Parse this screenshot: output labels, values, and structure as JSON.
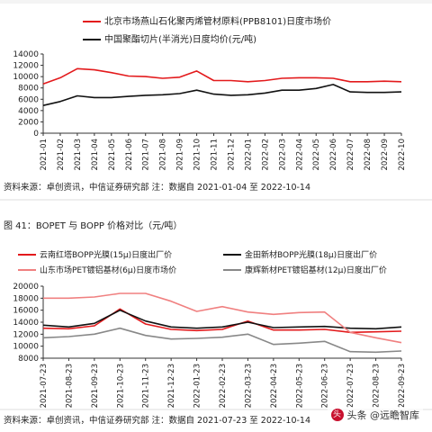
{
  "source_note_1": "资料来源：卓创资讯，中信证券研究部  注：数据自 2021-01-04 至 2022-10-14",
  "figure_caption_2": "图 41：BOPET 与 BOPP 价格对比（元/吨）",
  "source_note_2": "资料来源：卓创资讯，中信证券研究部  注：数据自 2021-07-23 至 2022-10-14",
  "watermark": {
    "text": "头条 @远瞻智库",
    "icon": "toutiao-logo-icon"
  },
  "chart_data": [
    {
      "type": "line",
      "grid": false,
      "legend_position": "top",
      "ylim": [
        0,
        14000
      ],
      "yticks": [
        0,
        2000,
        4000,
        6000,
        8000,
        10000,
        12000,
        14000
      ],
      "x": [
        "2021-01",
        "2021-02",
        "2021-03",
        "2021-04",
        "2021-05",
        "2021-06",
        "2021-07",
        "2021-08",
        "2021-09",
        "2021-10",
        "2021-11",
        "2021-12",
        "2022-01",
        "2022-02",
        "2022-03",
        "2022-04",
        "2022-05",
        "2022-06",
        "2022-07",
        "2022-08",
        "2022-09",
        "2022-10"
      ],
      "series": [
        {
          "name": "北京市场燕山石化聚丙烯管材原料(PPB8101)日度市场价",
          "color": "#e31a1c",
          "values": [
            8700,
            9800,
            11400,
            11200,
            10700,
            10100,
            10000,
            9700,
            9900,
            11000,
            9300,
            9300,
            9100,
            9300,
            9700,
            9800,
            9800,
            9700,
            9100,
            9100,
            9200,
            9100
          ]
        },
        {
          "name": "中国聚酯切片(半消光)日度均价(元/吨)",
          "color": "#111111",
          "values": [
            4900,
            5600,
            6600,
            6300,
            6300,
            6500,
            6700,
            6800,
            7000,
            7600,
            6900,
            6700,
            6800,
            7100,
            7600,
            7600,
            7900,
            8600,
            7300,
            7200,
            7200,
            7300
          ]
        }
      ]
    },
    {
      "type": "line",
      "grid": false,
      "legend_position": "top",
      "ylim": [
        8000,
        20000
      ],
      "yticks": [
        8000,
        10000,
        12000,
        14000,
        16000,
        18000,
        20000
      ],
      "x": [
        "2021-07-23",
        "2021-08-23",
        "2021-09-23",
        "2021-10-23",
        "2021-11-23",
        "2021-12-23",
        "2022-01-23",
        "2022-02-23",
        "2022-03-23",
        "2022-04-23",
        "2022-05-23",
        "2022-06-23",
        "2022-07-23",
        "2022-08-23",
        "2022-09-23"
      ],
      "series": [
        {
          "name": "云南红塔BOPP光膜(15μ)日度出厂价",
          "color": "#e31a1c",
          "values": [
            13000,
            12900,
            13400,
            16200,
            13700,
            12800,
            12600,
            12800,
            14200,
            12700,
            12700,
            12800,
            12300,
            12400,
            12500
          ]
        },
        {
          "name": "金田新材BOPP光膜(18μ)日度出厂价",
          "color": "#111111",
          "values": [
            13500,
            13200,
            13800,
            16000,
            14200,
            13200,
            13000,
            13200,
            14000,
            13100,
            13200,
            13300,
            13000,
            12900,
            13200
          ]
        },
        {
          "name": "山东市场PET镀铝基材(6μ)日度市场价",
          "color": "#f08080",
          "values": [
            18000,
            18000,
            18200,
            18800,
            18800,
            17500,
            15800,
            16600,
            15700,
            15300,
            15600,
            15700,
            12300,
            11400,
            10600
          ]
        },
        {
          "name": "康辉新材PET镀铝基材(12μ)日度出厂价",
          "color": "#888888",
          "values": [
            11400,
            11600,
            12000,
            13000,
            11800,
            11200,
            11300,
            11500,
            12000,
            10300,
            10500,
            10800,
            9100,
            9000,
            9200
          ]
        }
      ]
    }
  ]
}
